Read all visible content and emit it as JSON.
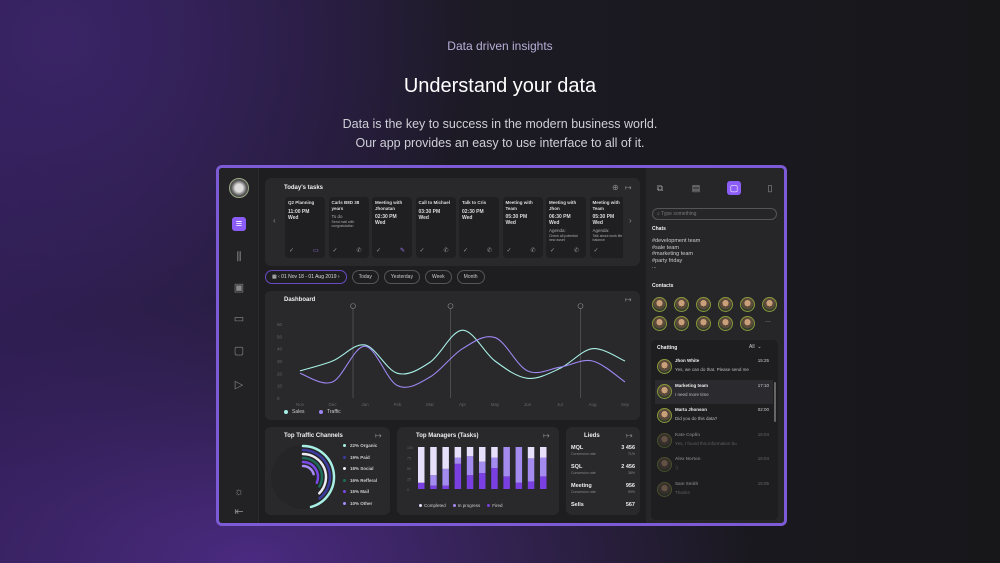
{
  "hero": {
    "kicker": "Data driven insights",
    "title": "Understand your data",
    "subtitle_line1": "Data is the key to success in the modern business world.",
    "subtitle_line2": "Our app provides an easy to use interface to all of it."
  },
  "colors": {
    "accent": "#7c4dff",
    "sales": "#a8f0e6",
    "traffic": "#9d87f0"
  },
  "sidebar": {
    "items": [
      "avatar",
      "menu-icon",
      "equalizer-icon",
      "image-icon",
      "calendar-icon",
      "chat-icon",
      "play-icon"
    ],
    "bottom": [
      "sun-icon",
      "collapse-icon"
    ]
  },
  "tasks": {
    "title": "Today's tasks",
    "items": [
      {
        "title": "Q2 Planning",
        "time": "11:00 PM",
        "day": "Wed",
        "note": "",
        "icons": [
          "check",
          "message"
        ]
      },
      {
        "title": "Carls B8D 38 years",
        "time": "",
        "day": "",
        "note": "To do",
        "detail": "Send mail with congratulation",
        "icons": [
          "check",
          "phone"
        ]
      },
      {
        "title": "Meeting with Jhonatan",
        "time": "02:30 PM",
        "day": "Wed",
        "note": "",
        "icons": [
          "check",
          "pen"
        ]
      },
      {
        "title": "Call to Michael",
        "time": "03:30 PM",
        "day": "Wed",
        "note": "",
        "icons": [
          "check",
          "phone"
        ]
      },
      {
        "title": "Talk to Cris",
        "time": "02:30 PM",
        "day": "Wed",
        "note": "",
        "icons": [
          "check",
          "phone"
        ]
      },
      {
        "title": "Meeting with Team",
        "time": "05:30 PM",
        "day": "Wed",
        "note": "",
        "icons": [
          "check",
          "phone"
        ]
      },
      {
        "title": "Meeting with Jhon",
        "time": "06:30 PM",
        "day": "Wed",
        "note": "Agenda:",
        "detail": "Check all potential new asset",
        "icons": [
          "check",
          "phone"
        ]
      },
      {
        "title": "Meeting with Team",
        "time": "05:30 PM",
        "day": "Wed",
        "note": "Agenda:",
        "detail": "Talk about work life balance",
        "icons": [
          "check"
        ]
      }
    ]
  },
  "date_filter": {
    "range": "01 Nov 18 - 01 Aug 2019",
    "buttons": [
      "Today",
      "Yesterday",
      "Week",
      "Month"
    ]
  },
  "chart_data": [
    {
      "type": "line",
      "title": "Dashboard",
      "x": [
        "Nov",
        "Dec",
        "Jan",
        "Feb",
        "Mar",
        "Apr",
        "May",
        "Jun",
        "Jul",
        "Aug",
        "Sep"
      ],
      "yticks": [
        0,
        10,
        20,
        30,
        40,
        50,
        60
      ],
      "ylim": [
        0,
        60
      ],
      "grid": false,
      "legend": "bottom-left",
      "series": [
        {
          "name": "Sales",
          "color": "#a8f0e6",
          "values": [
            22,
            30,
            43,
            20,
            29,
            55,
            30,
            16,
            24,
            40,
            30
          ]
        },
        {
          "name": "Traffic",
          "color": "#9d87f0",
          "values": [
            20,
            13,
            42,
            10,
            17,
            40,
            49,
            22,
            25,
            30,
            13
          ]
        }
      ],
      "markers": [
        "Jan",
        "Apr",
        "Aug"
      ]
    },
    {
      "type": "pie",
      "title": "Top Traffic Channels",
      "legend": "right",
      "slices": [
        {
          "name": "Organic",
          "value": 22,
          "label": "22% Organic",
          "color": "#a8f0e6"
        },
        {
          "name": "Paid",
          "value": 19,
          "label": "19% Paid",
          "color": "#3b3ba0"
        },
        {
          "name": "Social",
          "value": 18,
          "label": "18% Social",
          "color": "#ececf4"
        },
        {
          "name": "Refferal",
          "value": 16,
          "label": "16% Refferal",
          "color": "#1f6b5a"
        },
        {
          "name": "Mail",
          "value": 15,
          "label": "15% Mail",
          "color": "#7a4ae8"
        },
        {
          "name": "Other",
          "value": 10,
          "label": "10% Other",
          "color": "#a78bfa"
        }
      ]
    },
    {
      "type": "bar",
      "stacked": true,
      "title": "Top Managers (Tasks)",
      "yticks": [
        0,
        25,
        50,
        75,
        100
      ],
      "ylim": [
        0,
        100
      ],
      "legend": "bottom",
      "series": [
        {
          "name": "Completed",
          "color": "#e6e0fb",
          "values": [
            85,
            67,
            52,
            25,
            22,
            35,
            25,
            0,
            0,
            27,
            25
          ]
        },
        {
          "name": "In progress",
          "color": "#a48bf0",
          "values": [
            0,
            25,
            40,
            15,
            45,
            27,
            25,
            70,
            85,
            55,
            45
          ]
        },
        {
          "name": "Fired",
          "color": "#7a3fe0",
          "values": [
            15,
            8,
            8,
            60,
            33,
            38,
            50,
            30,
            15,
            18,
            30
          ]
        }
      ]
    }
  ],
  "leads": {
    "title": "Lieds",
    "rows": [
      {
        "label": "MQL",
        "value": "3 456",
        "sub": "Conversion rate",
        "pct": "71%"
      },
      {
        "label": "SQL",
        "value": "2 456",
        "sub": "Conversion rate",
        "pct": "38%"
      },
      {
        "label": "Meeting",
        "value": "956",
        "sub": "Conversion rate",
        "pct": "59%"
      },
      {
        "label": "Sells",
        "value": "567"
      }
    ]
  },
  "right": {
    "search_placeholder": "Type something",
    "chats_title": "Chats",
    "chats": [
      "#development team",
      "#sale team",
      "#marketing team",
      "#party friday",
      "..."
    ],
    "contacts_title": "Contacts",
    "more": "...",
    "chatting": {
      "title": "Chatting",
      "filter": "All",
      "rows": [
        {
          "name": "Jhon White",
          "msg": "Yes, we can do that. Please send me",
          "time": "15:25"
        },
        {
          "name": "Marketing team",
          "msg": "I need more time",
          "time": "17:10"
        },
        {
          "name": "Marta Jhonson",
          "msg": "Did you do this data?",
          "time": "02:00"
        },
        {
          "name": "Kate Coplin",
          "msg": "Yes, I found this information bu",
          "time": "15:04"
        },
        {
          "name": "Alex Norton",
          "msg": ":)",
          "time": "15:04"
        },
        {
          "name": "Sam Smith",
          "msg": "Thanks",
          "time": "15:05"
        }
      ]
    }
  }
}
